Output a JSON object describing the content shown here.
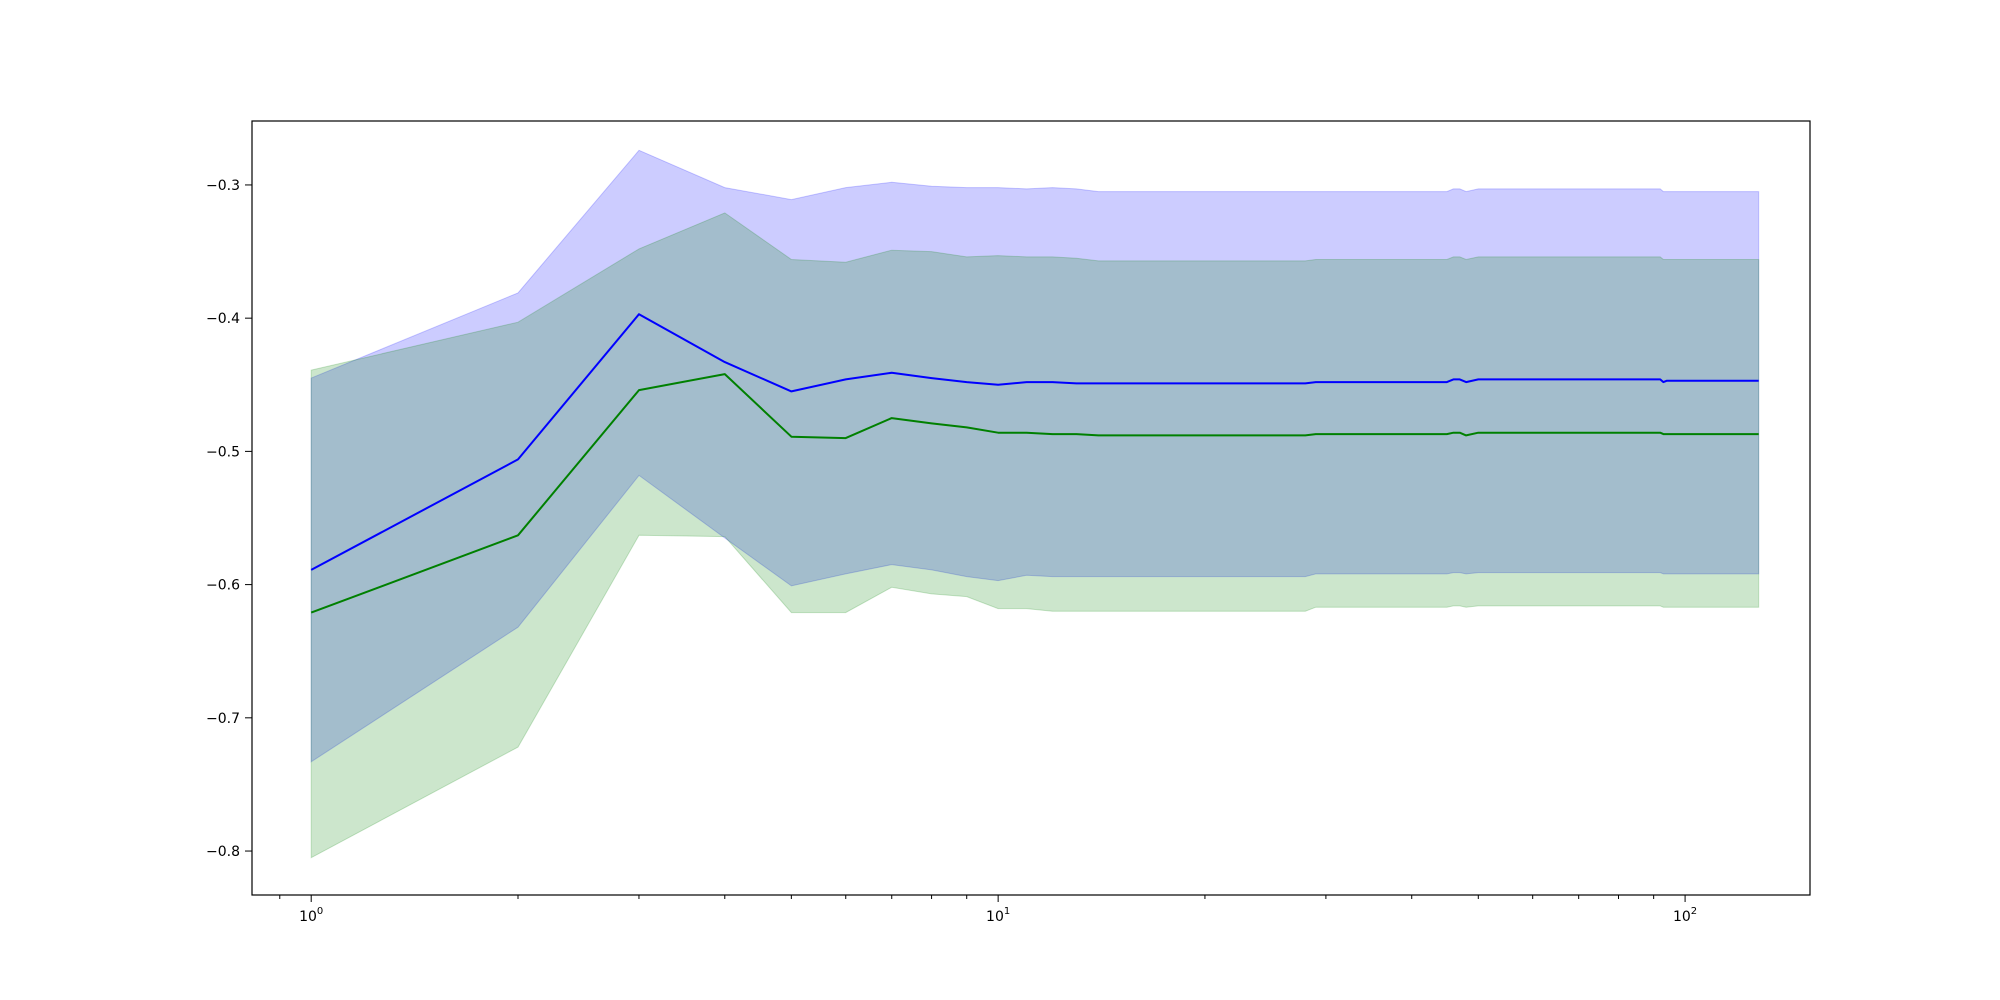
{
  "chart_data": {
    "type": "line",
    "title": "",
    "xlabel": "",
    "ylabel": "",
    "xscale": "log",
    "xlim": [
      0.82,
      152
    ],
    "ylim": [
      -0.833,
      -0.252
    ],
    "grid": false,
    "legend": "none",
    "x_ticks": [
      {
        "value": 1,
        "base": "10",
        "exp": "0"
      },
      {
        "value": 10,
        "base": "10",
        "exp": "1"
      },
      {
        "value": 100,
        "base": "10",
        "exp": "2"
      }
    ],
    "y_ticks": [
      {
        "value": -0.3,
        "label": "−0.3"
      },
      {
        "value": -0.4,
        "label": "−0.4"
      },
      {
        "value": -0.5,
        "label": "−0.5"
      },
      {
        "value": -0.6,
        "label": "−0.6"
      },
      {
        "value": -0.7,
        "label": "−0.7"
      },
      {
        "value": -0.8,
        "label": "−0.8"
      }
    ],
    "series": [
      {
        "color": "#0000ff",
        "band_color": "#0000ff",
        "band_opacity": 0.2,
        "x": [
          1,
          2,
          3,
          4,
          5,
          6,
          7,
          8,
          9,
          10,
          11,
          12,
          13,
          14,
          15,
          20,
          25,
          28,
          29,
          30,
          40,
          45,
          46,
          47,
          48,
          50,
          60,
          80,
          92,
          93,
          94,
          100,
          128
        ],
        "mean": [
          -0.589,
          -0.506,
          -0.397,
          -0.433,
          -0.455,
          -0.446,
          -0.441,
          -0.445,
          -0.448,
          -0.45,
          -0.448,
          -0.448,
          -0.449,
          -0.449,
          -0.449,
          -0.449,
          -0.449,
          -0.449,
          -0.448,
          -0.448,
          -0.448,
          -0.448,
          -0.446,
          -0.446,
          -0.448,
          -0.446,
          -0.446,
          -0.446,
          -0.446,
          -0.448,
          -0.447,
          -0.447,
          -0.447
        ],
        "upper": [
          -0.445,
          -0.381,
          -0.274,
          -0.302,
          -0.311,
          -0.302,
          -0.298,
          -0.301,
          -0.302,
          -0.302,
          -0.303,
          -0.302,
          -0.303,
          -0.305,
          -0.305,
          -0.305,
          -0.305,
          -0.305,
          -0.305,
          -0.305,
          -0.305,
          -0.305,
          -0.303,
          -0.303,
          -0.305,
          -0.303,
          -0.303,
          -0.303,
          -0.303,
          -0.305,
          -0.305,
          -0.305,
          -0.305
        ],
        "lower": [
          -0.733,
          -0.632,
          -0.518,
          -0.565,
          -0.601,
          -0.592,
          -0.585,
          -0.589,
          -0.594,
          -0.597,
          -0.593,
          -0.594,
          -0.594,
          -0.594,
          -0.594,
          -0.594,
          -0.594,
          -0.594,
          -0.592,
          -0.592,
          -0.592,
          -0.592,
          -0.591,
          -0.591,
          -0.592,
          -0.591,
          -0.591,
          -0.591,
          -0.591,
          -0.592,
          -0.592,
          -0.592,
          -0.592
        ]
      },
      {
        "color": "#008000",
        "band_color": "#008000",
        "band_opacity": 0.2,
        "x": [
          1,
          2,
          3,
          4,
          5,
          6,
          7,
          8,
          9,
          10,
          11,
          12,
          13,
          14,
          15,
          20,
          25,
          28,
          29,
          30,
          40,
          45,
          46,
          47,
          48,
          50,
          60,
          80,
          92,
          93,
          94,
          100,
          128
        ],
        "mean": [
          -0.621,
          -0.563,
          -0.454,
          -0.442,
          -0.489,
          -0.49,
          -0.475,
          -0.479,
          -0.482,
          -0.486,
          -0.486,
          -0.487,
          -0.487,
          -0.488,
          -0.488,
          -0.488,
          -0.488,
          -0.488,
          -0.487,
          -0.487,
          -0.487,
          -0.487,
          -0.486,
          -0.486,
          -0.488,
          -0.486,
          -0.486,
          -0.486,
          -0.486,
          -0.487,
          -0.487,
          -0.487,
          -0.487
        ],
        "upper": [
          -0.439,
          -0.403,
          -0.348,
          -0.321,
          -0.356,
          -0.358,
          -0.349,
          -0.35,
          -0.354,
          -0.353,
          -0.354,
          -0.354,
          -0.355,
          -0.357,
          -0.357,
          -0.357,
          -0.357,
          -0.357,
          -0.356,
          -0.356,
          -0.356,
          -0.356,
          -0.354,
          -0.354,
          -0.356,
          -0.354,
          -0.354,
          -0.354,
          -0.354,
          -0.356,
          -0.356,
          -0.356,
          -0.356
        ],
        "lower": [
          -0.805,
          -0.722,
          -0.563,
          -0.564,
          -0.621,
          -0.621,
          -0.602,
          -0.607,
          -0.609,
          -0.618,
          -0.618,
          -0.62,
          -0.62,
          -0.62,
          -0.62,
          -0.62,
          -0.62,
          -0.62,
          -0.617,
          -0.617,
          -0.617,
          -0.617,
          -0.616,
          -0.616,
          -0.617,
          -0.616,
          -0.616,
          -0.616,
          -0.616,
          -0.617,
          -0.617,
          -0.617,
          -0.617
        ]
      }
    ]
  }
}
